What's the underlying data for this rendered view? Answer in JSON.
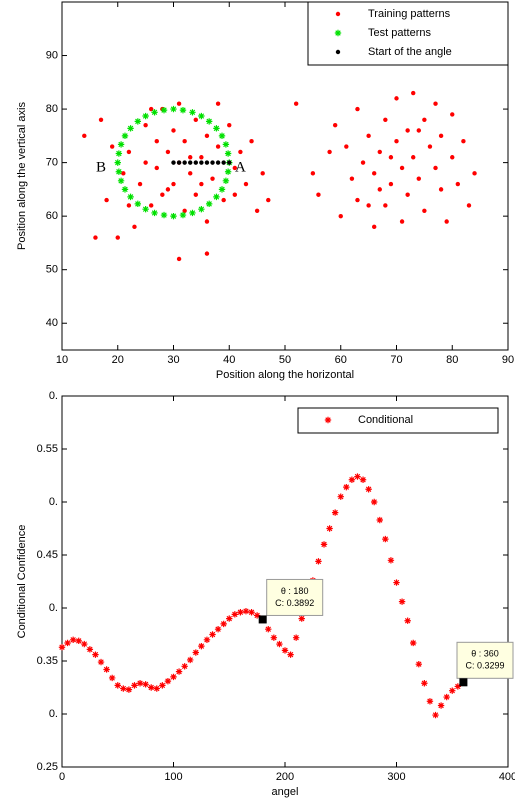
{
  "chart_data": [
    {
      "type": "scatter",
      "xlabel": "Position along the horizontal",
      "ylabel": "Position along the vertical axis",
      "xlim": [
        10,
        90
      ],
      "xticks": [
        10,
        20,
        30,
        40,
        50,
        60,
        70,
        80,
        90
      ],
      "ylim": [
        35,
        100
      ],
      "yticks": [
        40,
        50,
        60,
        70,
        80,
        90
      ],
      "grid": false,
      "legend": "upper right",
      "series": [
        {
          "name": "Training patterns",
          "color": "#ff0000",
          "marker": "dot",
          "x": [
            14,
            16,
            17,
            18,
            19,
            20,
            21,
            22,
            23,
            24,
            25,
            26,
            27,
            27,
            28,
            28,
            29,
            30,
            30,
            31,
            31,
            32,
            32,
            33,
            34,
            34,
            35,
            36,
            36,
            37,
            38,
            39,
            40,
            41,
            42,
            43,
            44,
            45,
            46,
            47,
            31,
            36,
            22,
            26,
            38,
            33,
            29,
            25,
            35,
            41,
            52,
            55,
            56,
            58,
            59,
            60,
            61,
            62,
            63,
            63,
            64,
            65,
            66,
            66,
            67,
            68,
            68,
            69,
            70,
            70,
            71,
            71,
            72,
            72,
            73,
            73,
            74,
            75,
            75,
            76,
            77,
            77,
            78,
            78,
            79,
            80,
            80,
            81,
            82,
            83,
            84,
            67,
            69,
            74,
            65
          ],
          "values": [
            75,
            56,
            78,
            63,
            73,
            56,
            68,
            72,
            58,
            66,
            77,
            62,
            74,
            69,
            80,
            64,
            72,
            76,
            66,
            70,
            81,
            61,
            74,
            68,
            78,
            64,
            71,
            75,
            59,
            67,
            73,
            63,
            77,
            69,
            72,
            66,
            74,
            61,
            68,
            63,
            52,
            53,
            62,
            80,
            81,
            71,
            65,
            70,
            66,
            64,
            81,
            68,
            64,
            72,
            77,
            60,
            73,
            67,
            80,
            63,
            70,
            75,
            58,
            68,
            72,
            62,
            78,
            66,
            74,
            82,
            69,
            59,
            76,
            64,
            71,
            83,
            67,
            78,
            61,
            73,
            69,
            81,
            65,
            75,
            59,
            71,
            79,
            66,
            74,
            62,
            68,
            65,
            71,
            76,
            62
          ]
        },
        {
          "name": "Test patterns",
          "color": "#00e000",
          "marker": "star",
          "x": [
            40,
            39.8,
            39.4,
            38.7,
            37.7,
            36.4,
            35,
            33.4,
            31.7,
            30,
            28.3,
            26.6,
            25,
            23.6,
            22.3,
            21.3,
            20.6,
            20.2,
            20,
            20.2,
            20.6,
            21.3,
            22.3,
            23.6,
            25,
            26.6,
            28.3,
            30,
            31.7,
            33.4,
            35,
            36.4,
            37.7,
            38.7,
            39.4,
            39.8
          ],
          "values": [
            70,
            71.7,
            73.4,
            75,
            76.4,
            77.7,
            78.7,
            79.4,
            79.8,
            80,
            79.8,
            79.4,
            78.7,
            77.7,
            76.4,
            75,
            73.4,
            71.7,
            70,
            68.3,
            66.6,
            65,
            63.6,
            62.3,
            61.3,
            60.6,
            60.2,
            60,
            60.2,
            60.6,
            61.3,
            62.3,
            63.6,
            65,
            66.6,
            68.3
          ]
        },
        {
          "name": "Start of the angle",
          "color": "#000000",
          "marker": "dot",
          "x": [
            30,
            31,
            32,
            33,
            34,
            35,
            36,
            37,
            38,
            39,
            40
          ],
          "values": [
            70,
            70,
            70,
            70,
            70,
            70,
            70,
            70,
            70,
            70,
            70
          ]
        }
      ],
      "annotations": [
        {
          "text": "A",
          "x": 42,
          "y": 69
        },
        {
          "text": "B",
          "x": 17,
          "y": 69
        }
      ]
    },
    {
      "type": "line",
      "xlabel": "angel",
      "ylabel": "Conditional Confidence",
      "xlim": [
        0,
        400
      ],
      "xticks": [
        0,
        100,
        200,
        300,
        400
      ],
      "ylim": [
        0.25,
        0.6
      ],
      "yticks": [
        {
          "value": 0.25,
          "label": "0.25"
        },
        {
          "value": 0.3,
          "label": "0."
        },
        {
          "value": 0.35,
          "label": "0.35"
        },
        {
          "value": 0.4,
          "label": "0."
        },
        {
          "value": 0.45,
          "label": "0.45"
        },
        {
          "value": 0.5,
          "label": "0."
        },
        {
          "value": 0.55,
          "label": "0.55"
        },
        {
          "value": 0.6,
          "label": "0."
        }
      ],
      "grid": false,
      "legend": "upper right",
      "x": [
        0,
        5,
        10,
        15,
        20,
        25,
        30,
        35,
        40,
        45,
        50,
        55,
        60,
        65,
        70,
        75,
        80,
        85,
        90,
        95,
        100,
        105,
        110,
        115,
        120,
        125,
        130,
        135,
        140,
        145,
        150,
        155,
        160,
        165,
        170,
        175,
        180,
        185,
        190,
        195,
        200,
        205,
        210,
        215,
        220,
        225,
        230,
        235,
        240,
        245,
        250,
        255,
        260,
        265,
        270,
        275,
        280,
        285,
        290,
        295,
        300,
        305,
        310,
        315,
        320,
        325,
        330,
        335,
        340,
        345,
        350,
        355,
        360
      ],
      "series": [
        {
          "name": "Conditional",
          "color": "#ff0000",
          "marker": "star",
          "values": [
            0.363,
            0.367,
            0.37,
            0.369,
            0.366,
            0.361,
            0.356,
            0.349,
            0.342,
            0.334,
            0.327,
            0.324,
            0.323,
            0.327,
            0.329,
            0.328,
            0.325,
            0.324,
            0.327,
            0.331,
            0.335,
            0.34,
            0.345,
            0.351,
            0.358,
            0.364,
            0.37,
            0.375,
            0.38,
            0.385,
            0.39,
            0.394,
            0.396,
            0.397,
            0.396,
            0.393,
            0.3892,
            0.38,
            0.372,
            0.366,
            0.36,
            0.356,
            0.372,
            0.39,
            0.408,
            0.426,
            0.444,
            0.46,
            0.475,
            0.49,
            0.505,
            0.514,
            0.521,
            0.524,
            0.521,
            0.512,
            0.5,
            0.483,
            0.465,
            0.445,
            0.424,
            0.406,
            0.388,
            0.367,
            0.347,
            0.329,
            0.312,
            0.299,
            0.308,
            0.316,
            0.322,
            0.326,
            0.3299
          ]
        }
      ],
      "datatips": [
        {
          "x": 180,
          "y": 0.3892,
          "lines": [
            "θ : 180",
            "C: 0.3892"
          ]
        },
        {
          "x": 360,
          "y": 0.3299,
          "lines": [
            "θ : 360",
            "C: 0.3299"
          ]
        }
      ]
    }
  ]
}
